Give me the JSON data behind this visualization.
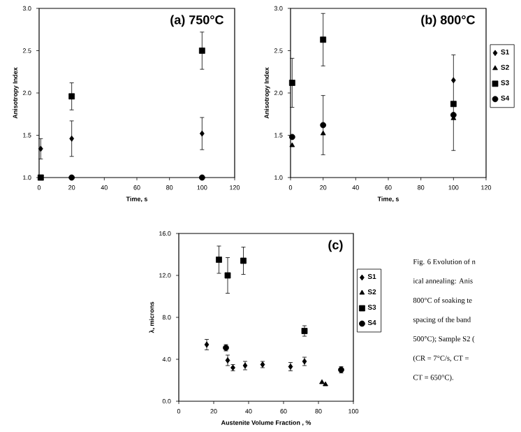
{
  "chart_data": [
    {
      "type": "scatter",
      "title": "(a) 750°C",
      "xlabel": "Time, s",
      "ylabel": "Anisotropy Index",
      "xlim": [
        0,
        120
      ],
      "xticks": [
        0,
        20,
        40,
        60,
        80,
        100,
        120
      ],
      "ylim": [
        1,
        3
      ],
      "yticks": [
        {
          "value": 1,
          "label": "1.0"
        },
        {
          "value": 1.5,
          "label": "1.5"
        },
        {
          "value": 2,
          "label": "2.0"
        },
        {
          "value": 2.5,
          "label": "2.5"
        },
        {
          "value": 3,
          "label": "3.0"
        }
      ],
      "series": [
        {
          "color": "#000000",
          "marker": "diamond",
          "x": [
            1,
            20,
            100
          ],
          "values": [
            1.34,
            1.46,
            1.52
          ],
          "errors": [
            0.12,
            0.21,
            0.19
          ]
        },
        {
          "color": "#000000",
          "marker": "square",
          "x": [
            1,
            20,
            100
          ],
          "values": [
            1.0,
            1.96,
            2.5
          ],
          "errors": [
            null,
            0.16,
            0.22
          ]
        },
        {
          "color": "#000000",
          "marker": "circle",
          "x": [
            20,
            100
          ],
          "values": [
            1.0,
            1.0
          ]
        }
      ]
    },
    {
      "type": "scatter",
      "title": "(b) 800°C",
      "xlabel": "Time, s",
      "ylabel": "Anisotropy Index",
      "legend": "right",
      "xlim": [
        0,
        120
      ],
      "xticks": [
        0,
        20,
        40,
        60,
        80,
        100,
        120
      ],
      "ylim": [
        1,
        3
      ],
      "yticks": [
        {
          "value": 1,
          "label": "1.0"
        },
        {
          "value": 1.5,
          "label": "1.5"
        },
        {
          "value": 2,
          "label": "2.0"
        },
        {
          "value": 2.5,
          "label": "2.5"
        },
        {
          "value": 3,
          "label": "3.0"
        }
      ],
      "series": [
        {
          "name": "S1",
          "color": "#000000",
          "marker": "diamond",
          "x": [
            100
          ],
          "values": [
            2.15
          ],
          "errors": [
            [
              1.32,
              2.45
            ]
          ]
        },
        {
          "name": "S2",
          "color": "#000000",
          "marker": "triangle",
          "x": [
            1,
            20,
            100
          ],
          "values": [
            1.38,
            1.52,
            1.7
          ]
        },
        {
          "name": "S3",
          "color": "#000000",
          "marker": "square",
          "x": [
            1,
            20,
            100
          ],
          "values": [
            2.12,
            2.63,
            1.87
          ],
          "errors": [
            0.29,
            0.31,
            null
          ]
        },
        {
          "name": "S4",
          "color": "#000000",
          "marker": "circle",
          "x": [
            1,
            20,
            100
          ],
          "values": [
            1.48,
            1.62,
            1.74
          ],
          "errors": [
            null,
            0.35,
            null
          ]
        }
      ]
    },
    {
      "type": "scatter",
      "title": "(c)",
      "xlabel": "Austenite Volume Fraction , %",
      "ylabel": "λ, microns",
      "legend": "right",
      "xlim": [
        0,
        100
      ],
      "xticks": [
        0,
        20,
        40,
        60,
        80,
        100
      ],
      "ylim": [
        0,
        16
      ],
      "yticks": [
        {
          "value": 0,
          "label": "0.0"
        },
        {
          "value": 4,
          "label": "4.0"
        },
        {
          "value": 8,
          "label": "8.0"
        },
        {
          "value": 12,
          "label": "12.0"
        },
        {
          "value": 16,
          "label": "16.0"
        }
      ],
      "series": [
        {
          "name": "S1",
          "color": "#000000",
          "marker": "diamond",
          "x": [
            16,
            28,
            31,
            38,
            48,
            64,
            72
          ],
          "values": [
            5.4,
            3.9,
            3.2,
            3.4,
            3.5,
            3.3,
            3.8
          ],
          "errors": [
            0.5,
            0.5,
            0.3,
            0.4,
            0.3,
            0.4,
            0.4
          ]
        },
        {
          "name": "S2",
          "color": "#000000",
          "marker": "triangle",
          "x": [
            82,
            84
          ],
          "values": [
            1.8,
            1.6
          ]
        },
        {
          "name": "S3",
          "color": "#000000",
          "marker": "square",
          "x": [
            23,
            28,
            37,
            72
          ],
          "values": [
            13.5,
            12.0,
            13.4,
            6.7
          ],
          "errors": [
            1.3,
            1.7,
            1.3,
            0.5
          ]
        },
        {
          "name": "S4",
          "color": "#000000",
          "marker": "circle",
          "x": [
            27,
            93
          ],
          "values": [
            5.1,
            3.0
          ],
          "errors": [
            0.3,
            0.3
          ]
        }
      ],
      "annotations": [
        "Fig. 6   Evolution of n",
        "ical annealing: Anis",
        "800°C of soaking te",
        "spacing of the band",
        "500°C); Sample S2 (",
        "(CR = 7°C/s, CT =",
        "CT = 650°C)."
      ]
    }
  ]
}
